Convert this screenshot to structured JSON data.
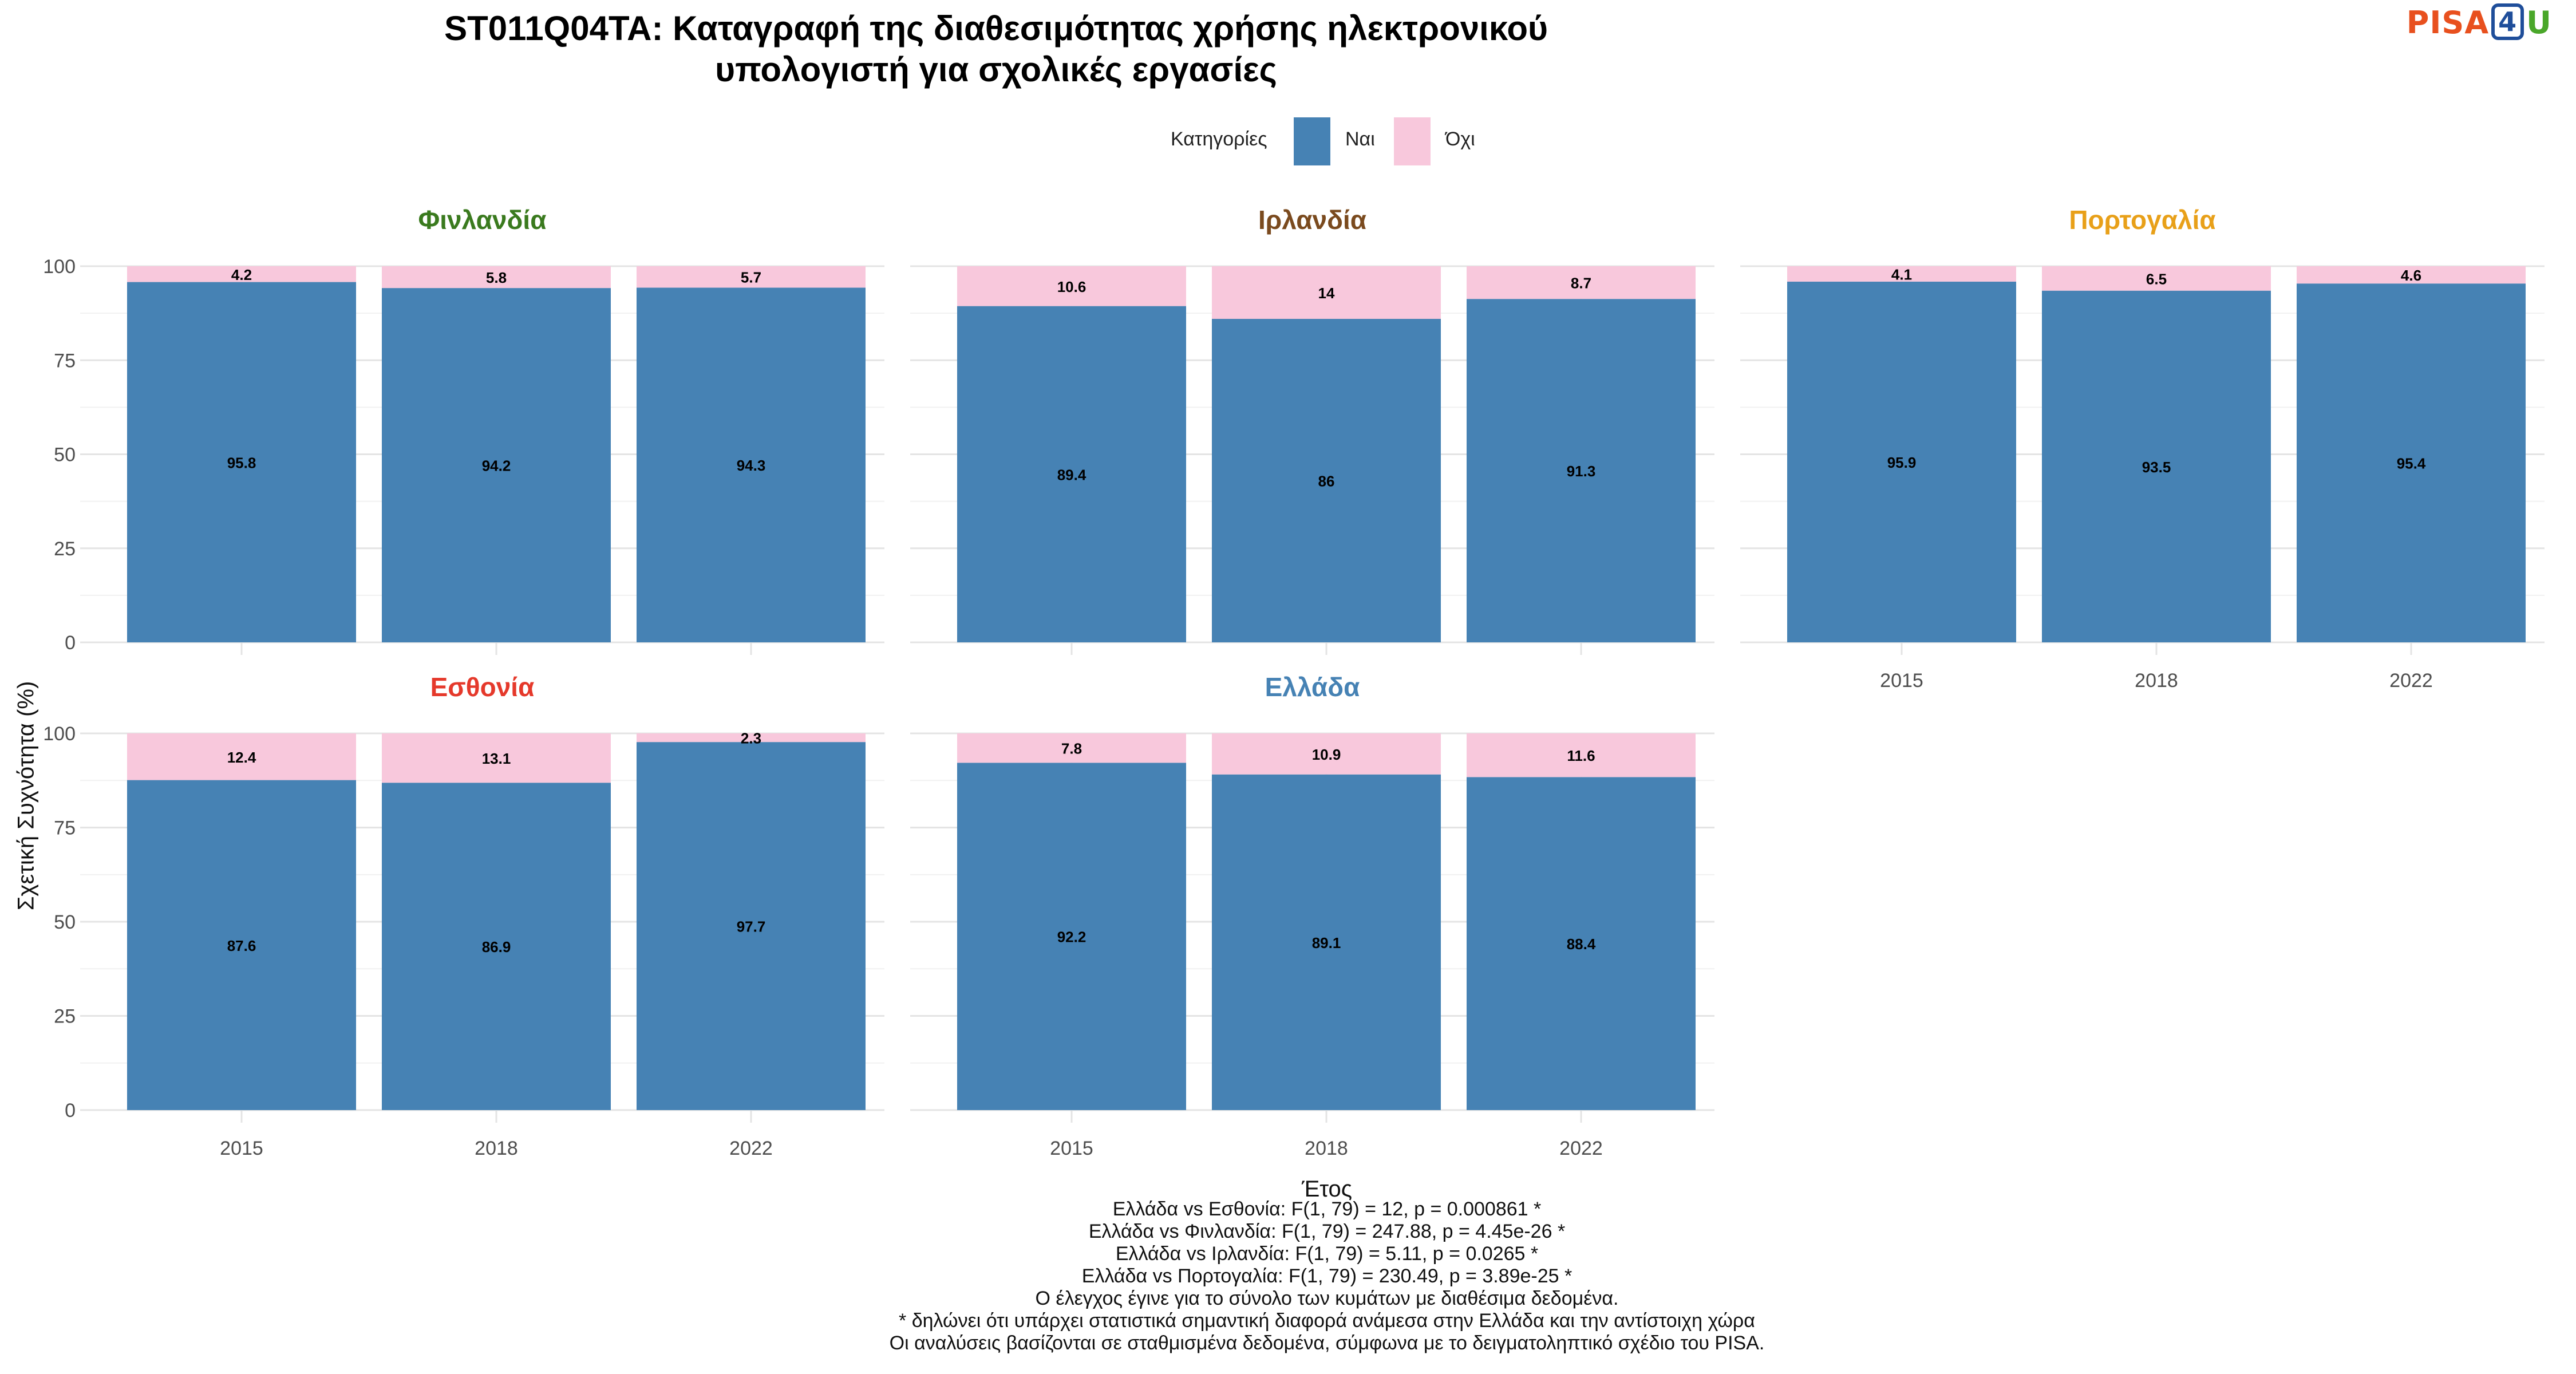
{
  "title_lines": [
    "ST011Q04TA: Καταγραφή της διαθεσιμότητας χρήσης ηλεκτρονικού",
    "υπολογιστή για σχολικές εργασίες"
  ],
  "logo": {
    "part1": "PISA",
    "part2": "4",
    "part3": "U"
  },
  "chart_data": {
    "type": "bar",
    "stacked": true,
    "xlabel": "Έτος",
    "ylabel": "Σχετική Συχνότητα (%)",
    "ylim": [
      0,
      100
    ],
    "y_ticks": [
      0,
      25,
      50,
      75,
      100
    ],
    "categories": [
      "2015",
      "2018",
      "2022"
    ],
    "legend": {
      "title": "Κατηγορίες",
      "position": "top",
      "entries": [
        {
          "label": "Ναι",
          "color": "#4682B4"
        },
        {
          "label": "Όχι",
          "color": "#F8C8DC"
        }
      ]
    },
    "panels": [
      {
        "country": "Φινλανδία",
        "title_color": "#3a7a1e",
        "series": [
          {
            "name": "Ναι",
            "values": [
              95.8,
              94.2,
              94.3
            ]
          },
          {
            "name": "Όχι",
            "values": [
              4.2,
              5.8,
              5.7
            ]
          }
        ]
      },
      {
        "country": "Ιρλανδία",
        "title_color": "#7a4a1e",
        "series": [
          {
            "name": "Ναι",
            "values": [
              89.4,
              86,
              91.3
            ]
          },
          {
            "name": "Όχι",
            "values": [
              10.6,
              14,
              8.7
            ]
          }
        ]
      },
      {
        "country": "Πορτογαλία",
        "title_color": "#e8a019",
        "series": [
          {
            "name": "Ναι",
            "values": [
              95.9,
              93.5,
              95.4
            ]
          },
          {
            "name": "Όχι",
            "values": [
              4.1,
              6.5,
              4.6
            ]
          }
        ]
      },
      {
        "country": "Εσθονία",
        "title_color": "#e5392b",
        "series": [
          {
            "name": "Ναι",
            "values": [
              87.6,
              86.9,
              97.7
            ]
          },
          {
            "name": "Όχι",
            "values": [
              12.4,
              13.1,
              2.3
            ]
          }
        ]
      },
      {
        "country": "Ελλάδα",
        "title_color": "#4682B4",
        "series": [
          {
            "name": "Ναι",
            "values": [
              92.2,
              89.1,
              88.4
            ]
          },
          {
            "name": "Όχι",
            "values": [
              7.8,
              10.9,
              11.6
            ]
          }
        ]
      }
    ]
  },
  "caption_lines": [
    "Ελλάδα vs Εσθονία: F(1, 79) = 12, p = 0.000861 *",
    "Ελλάδα vs Φινλανδία: F(1, 79) = 247.88, p = 4.45e-26 *",
    "Ελλάδα vs Ιρλανδία: F(1, 79) = 5.11, p = 0.0265 *",
    "Ελλάδα vs Πορτογαλία: F(1, 79) = 230.49, p = 3.89e-25 *",
    "Ο έλεγχος έγινε για το σύνολο των κυμάτων με διαθέσιμα δεδομένα.",
    "* δηλώνει ότι υπάρχει στατιστικά σημαντική διαφορά ανάμεσα στην Ελλάδα και την αντίστοιχη χώρα",
    "Οι αναλύσεις βασίζονται σε σταθμισμένα δεδομένα, σύμφωνα με το δειγματοληπτικό σχέδιο του PISA."
  ]
}
